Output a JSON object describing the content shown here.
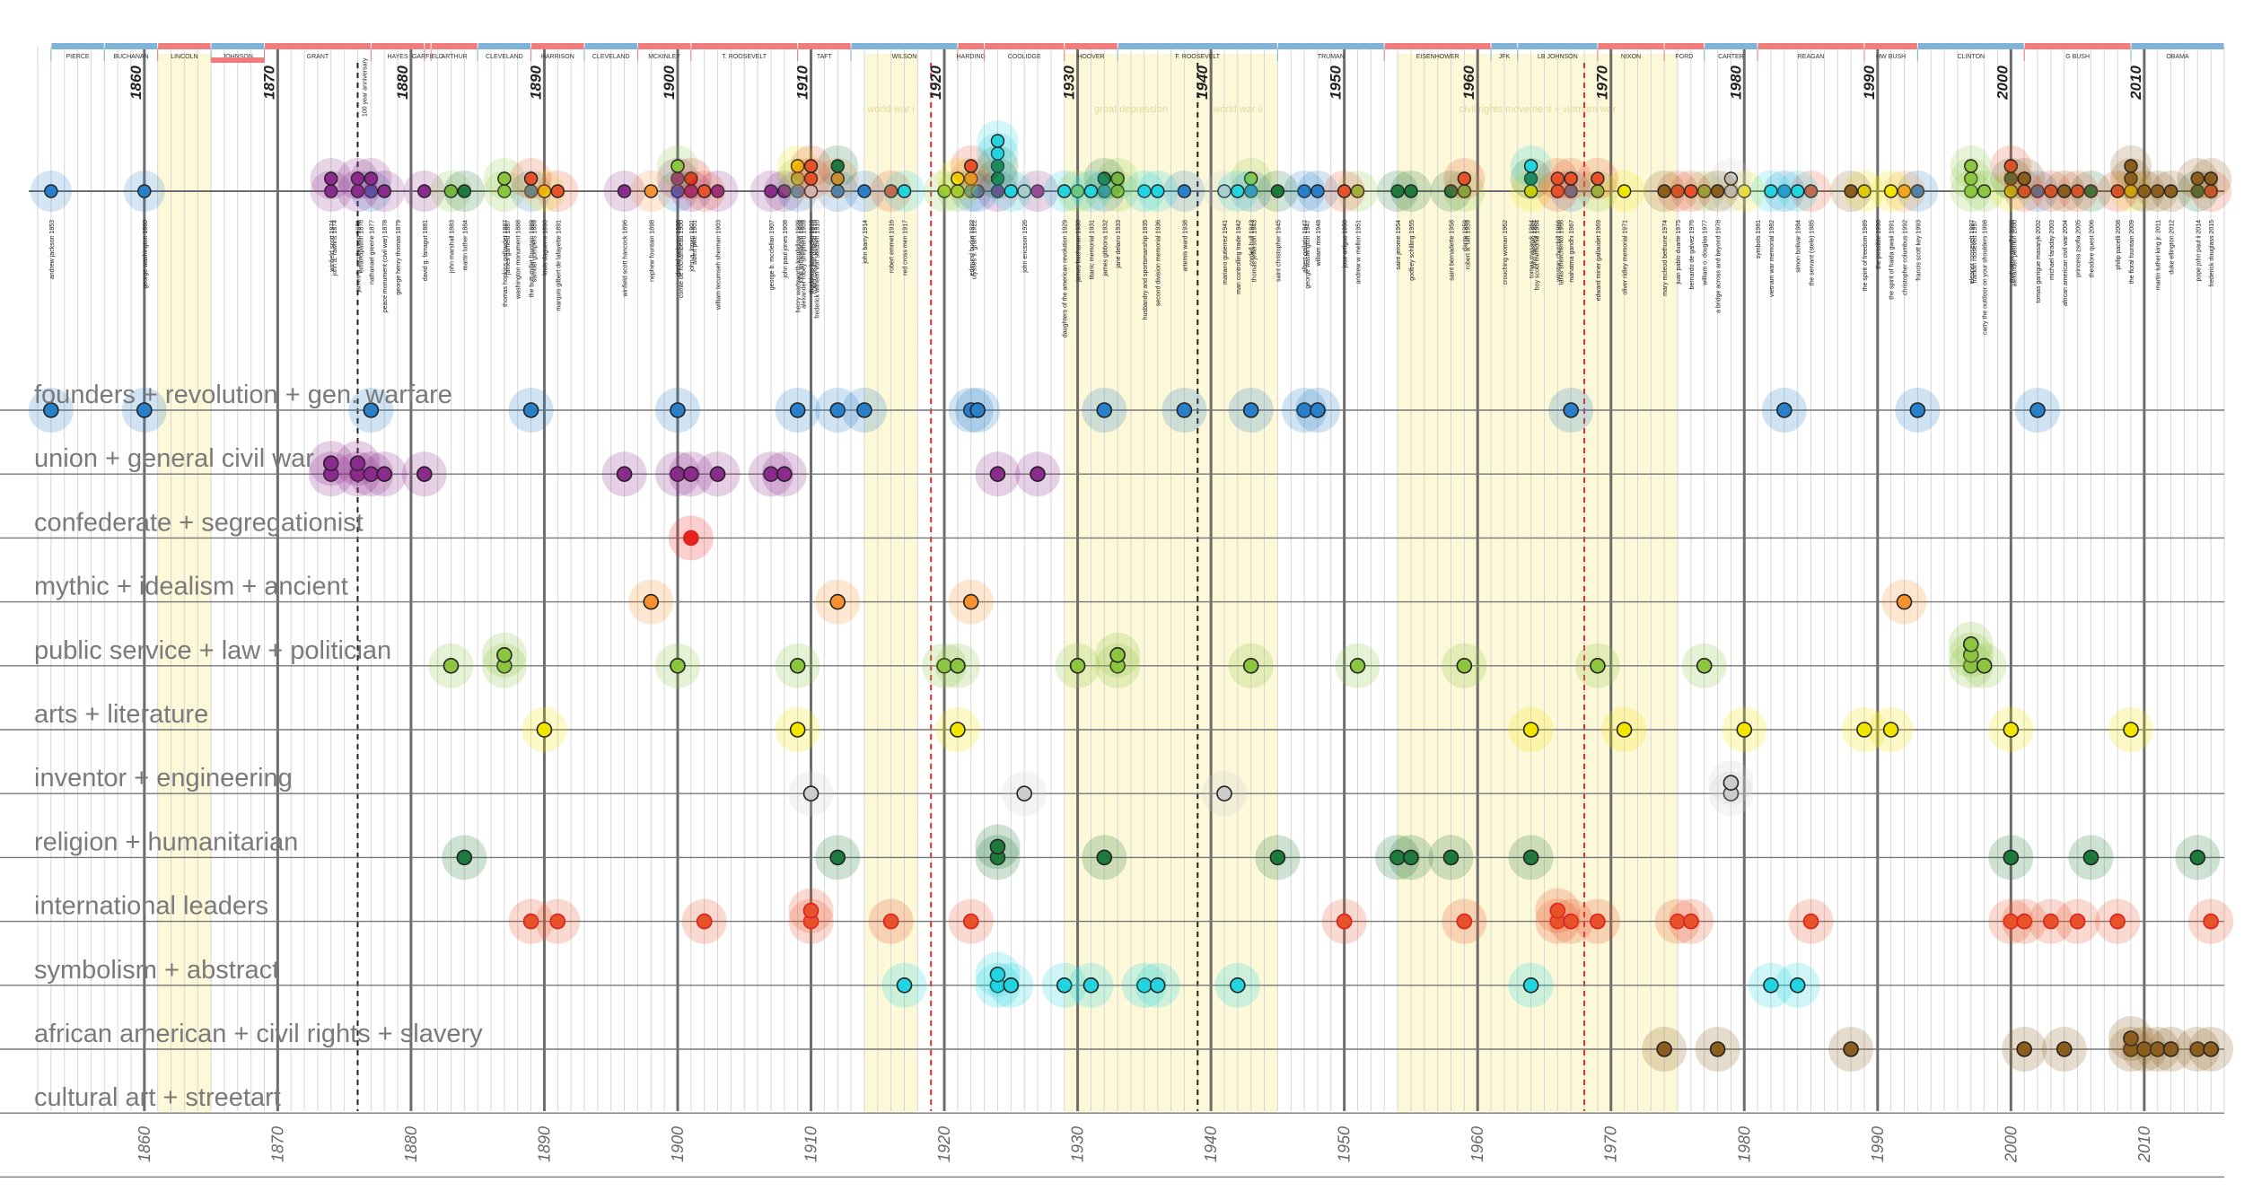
{
  "chart_data": {
    "type": "scatter",
    "x_axis": {
      "min": 1852,
      "max": 2016,
      "ticks": [
        1860,
        1870,
        1880,
        1890,
        1900,
        1910,
        1920,
        1930,
        1940,
        1950,
        1960,
        1970,
        1980,
        1990,
        2000,
        2010
      ]
    },
    "presidents": [
      {
        "name": "PIERCE",
        "start": 1853,
        "end": 1857,
        "party": "D"
      },
      {
        "name": "BUCHANAN",
        "start": 1857,
        "end": 1861,
        "party": "D"
      },
      {
        "name": "LINCOLN",
        "start": 1861,
        "end": 1865,
        "party": "R"
      },
      {
        "name": "JOHNSON",
        "start": 1865,
        "end": 1869,
        "party": "D"
      },
      {
        "name": "GRANT",
        "start": 1869,
        "end": 1877,
        "party": "R"
      },
      {
        "name": "HAYES",
        "start": 1877,
        "end": 1881,
        "party": "R"
      },
      {
        "name": "GARFIELD",
        "start": 1881,
        "end": 1881.5,
        "party": "R"
      },
      {
        "name": "ARTHUR",
        "start": 1881.5,
        "end": 1885,
        "party": "R"
      },
      {
        "name": "CLEVELAND",
        "start": 1885,
        "end": 1889,
        "party": "D"
      },
      {
        "name": "HARRISON",
        "start": 1889,
        "end": 1893,
        "party": "R"
      },
      {
        "name": "CLEVELAND",
        "start": 1893,
        "end": 1897,
        "party": "D"
      },
      {
        "name": "MCKINLEY",
        "start": 1897,
        "end": 1901,
        "party": "R"
      },
      {
        "name": "T. ROOSEVELT",
        "start": 1901,
        "end": 1909,
        "party": "R"
      },
      {
        "name": "TAFT",
        "start": 1909,
        "end": 1913,
        "party": "R"
      },
      {
        "name": "WILSON",
        "start": 1913,
        "end": 1921,
        "party": "D"
      },
      {
        "name": "HARDING",
        "start": 1921,
        "end": 1923,
        "party": "R"
      },
      {
        "name": "COOLIDGE",
        "start": 1923,
        "end": 1929,
        "party": "R"
      },
      {
        "name": "HOOVER",
        "start": 1929,
        "end": 1933,
        "party": "R"
      },
      {
        "name": "F. ROOSEVELT",
        "start": 1933,
        "end": 1945,
        "party": "D"
      },
      {
        "name": "TRUMAN",
        "start": 1945,
        "end": 1953,
        "party": "D"
      },
      {
        "name": "EISENHOWER",
        "start": 1953,
        "end": 1961,
        "party": "R"
      },
      {
        "name": "JFK",
        "start": 1961,
        "end": 1963,
        "party": "D"
      },
      {
        "name": "LB JOHNSON",
        "start": 1963,
        "end": 1969,
        "party": "D"
      },
      {
        "name": "NIXON",
        "start": 1969,
        "end": 1974,
        "party": "R"
      },
      {
        "name": "FORD",
        "start": 1974,
        "end": 1977,
        "party": "R"
      },
      {
        "name": "CARTER",
        "start": 1977,
        "end": 1981,
        "party": "D"
      },
      {
        "name": "REAGAN",
        "start": 1981,
        "end": 1989,
        "party": "R"
      },
      {
        "name": "HW BUSH",
        "start": 1989,
        "end": 1993,
        "party": "R"
      },
      {
        "name": "CLINTON",
        "start": 1993,
        "end": 2001,
        "party": "D"
      },
      {
        "name": "G BUSH",
        "start": 2001,
        "end": 2009,
        "party": "R"
      },
      {
        "name": "OBAMA",
        "start": 2009,
        "end": 2016,
        "party": "D"
      }
    ],
    "eras": [
      {
        "label": "",
        "start": 1861,
        "end": 1865
      },
      {
        "label": "world war i",
        "start": 1914,
        "end": 1918
      },
      {
        "label": "great depression",
        "start": 1929,
        "end": 1939
      },
      {
        "label": "world war ii",
        "start": 1939,
        "end": 1945
      },
      {
        "label": "civil rights movement + vietnam war",
        "start": 1954,
        "end": 1975
      }
    ],
    "marker_lines": [
      {
        "year": 1876,
        "style": "black-dashed",
        "label": "100 year anniversary"
      },
      {
        "year": 1919,
        "style": "red-dashed",
        "label": ""
      },
      {
        "year": 1939,
        "style": "black-dashed",
        "label": ""
      },
      {
        "year": 1968,
        "style": "red-dashed",
        "label": ""
      }
    ],
    "categories": [
      {
        "name": "founders + revolution + gen. warfare",
        "color": "#2a7fc9",
        "years": [
          1853,
          1860,
          1877,
          1889,
          1900,
          1909,
          1912,
          1914,
          1922,
          1922.5,
          1932,
          1938,
          1943,
          1947,
          1948,
          1967,
          1983,
          1993,
          2002
        ]
      },
      {
        "name": "union + general civil war",
        "color": "#8b2b8e",
        "years": [
          1874,
          1874,
          1876,
          1876,
          1877,
          1878,
          1881,
          1896,
          1900,
          1901,
          1903,
          1907,
          1908,
          1924,
          1927
        ]
      },
      {
        "name": "confederate + segregationist",
        "color": "#e8231c",
        "years": [
          1901
        ]
      },
      {
        "name": "mythic + idealism + ancient",
        "color": "#f5912e",
        "years": [
          1898,
          1912,
          1922,
          1992
        ]
      },
      {
        "name": "public service + law + politician",
        "color": "#8cc63f",
        "years": [
          1883,
          1887,
          1887,
          1900,
          1909,
          1920,
          1921,
          1930,
          1933,
          1933,
          1943,
          1951,
          1959,
          1969,
          1977,
          1997,
          1997,
          1997,
          1998
        ]
      },
      {
        "name": "arts + literature",
        "color": "#f2e500",
        "years": [
          1890,
          1909,
          1921,
          1964,
          1971,
          1980,
          1989,
          1991,
          2000,
          2009
        ]
      },
      {
        "name": "inventor + engineering",
        "color": "#cccccc",
        "years": [
          1910,
          1926,
          1941,
          1979,
          1979
        ]
      },
      {
        "name": "religion + humanitarian",
        "color": "#1e7a3c",
        "years": [
          1884,
          1912,
          1924,
          1924,
          1932,
          1945,
          1954,
          1955,
          1958,
          1964,
          2000,
          2006,
          2014
        ]
      },
      {
        "name": "international leaders",
        "color": "#e8522a",
        "years": [
          1889,
          1891,
          1902,
          1910,
          1910,
          1916,
          1922,
          1950,
          1959,
          1966,
          1966,
          1967,
          1969,
          1975,
          1976,
          1985,
          2000,
          2001,
          2003,
          2005,
          2008,
          2015
        ]
      },
      {
        "name": "symbolism + abstract",
        "color": "#21d4e0",
        "years": [
          1917,
          1924,
          1924,
          1925,
          1929,
          1931,
          1935,
          1936,
          1942,
          1964,
          1982,
          1984
        ]
      },
      {
        "name": "african american + civil rights + slavery",
        "color": "#8b5e1e",
        "years": [
          1974,
          1978,
          1988,
          2001,
          2004,
          2009,
          2009,
          2010,
          2011,
          2012,
          2014,
          2015
        ]
      },
      {
        "name": "cultural art + streetart",
        "color": "#999999",
        "years": []
      }
    ],
    "monuments": [
      {
        "name": "andrew jackson 1853",
        "year": 1853
      },
      {
        "name": "george washington 1860",
        "year": 1860
      },
      {
        "name": "winfield scott 1874",
        "year": 1874
      },
      {
        "name": "john a. rawlins 1874",
        "year": 1874.2
      },
      {
        "name": "james b. mcpherson 1876",
        "year": 1876
      },
      {
        "name": "emancipation 1876",
        "year": 1876.2
      },
      {
        "name": "nathanael greene 1877",
        "year": 1877
      },
      {
        "name": "peace monument (civil war) 1878",
        "year": 1878
      },
      {
        "name": "george henry thomas 1879",
        "year": 1879
      },
      {
        "name": "david g. farragut 1881",
        "year": 1881
      },
      {
        "name": "john marshall 1883",
        "year": 1883
      },
      {
        "name": "martin luther 1884",
        "year": 1884
      },
      {
        "name": "thomas hopkins gallaudet 1887",
        "year": 1887
      },
      {
        "name": "james garfield 1887",
        "year": 1887.2
      },
      {
        "name": "washington monument 1888",
        "year": 1888
      },
      {
        "name": "the butt-millet fountain 1889",
        "year": 1889
      },
      {
        "name": "samuel gompers 1889",
        "year": 1889.2
      },
      {
        "name": "louis daguerre 1890",
        "year": 1890
      },
      {
        "name": "marquis gilbert de lafayette 1891",
        "year": 1891
      },
      {
        "name": "winfield scott hancock 1896",
        "year": 1896
      },
      {
        "name": "nephew fountain 1898",
        "year": 1898
      },
      {
        "name": "daniel webster 1900",
        "year": 1900
      },
      {
        "name": "comte de rochambeau 1900",
        "year": 1900.2
      },
      {
        "name": "john a. logan 1901",
        "year": 1901
      },
      {
        "name": "albert pike 1901",
        "year": 1901.2
      },
      {
        "name": "william tecumseh sherman 1903",
        "year": 1903
      },
      {
        "name": "george b. mcclellan 1907",
        "year": 1907
      },
      {
        "name": "john paul jones 1908",
        "year": 1908
      },
      {
        "name": "henry wadsworth longfellow 1909",
        "year": 1909
      },
      {
        "name": "john witherspoon 1909",
        "year": 1909.2
      },
      {
        "name": "alexander robey shepherd 1909",
        "year": 1909.4
      },
      {
        "name": "thaddeus kosciuszko 1910",
        "year": 1910
      },
      {
        "name": "count casimir pulaski 1910",
        "year": 1910.2
      },
      {
        "name": "frederick wilhelm von steuben 1910",
        "year": 1910.4
      },
      {
        "name": "john barry 1914",
        "year": 1914
      },
      {
        "name": "robert emmet 1916",
        "year": 1916
      },
      {
        "name": "red cross men 1917",
        "year": 1917
      },
      {
        "name": "edmund burke 1922",
        "year": 1922
      },
      {
        "name": "ulysses s. grant 1922",
        "year": 1922.2
      },
      {
        "name": "john ericsson 1926",
        "year": 1926
      },
      {
        "name": "daughters of the american revolution 1929",
        "year": 1929
      },
      {
        "name": "james buchanan 1930",
        "year": 1930
      },
      {
        "name": "titanic memorial 1931",
        "year": 1931
      },
      {
        "name": "james gibbons 1932",
        "year": 1932
      },
      {
        "name": "jane delano 1933",
        "year": 1933
      },
      {
        "name": "husbandry and sportsmanship 1935",
        "year": 1935
      },
      {
        "name": "second division memorial 1936",
        "year": 1936
      },
      {
        "name": "artemis ward 1938",
        "year": 1938
      },
      {
        "name": "mariano gutierrez 1941",
        "year": 1941
      },
      {
        "name": "man controlling trade 1942",
        "year": 1942
      },
      {
        "name": "cordell hull 1943",
        "year": 1943
      },
      {
        "name": "thomas jefferson 1943",
        "year": 1943.2
      },
      {
        "name": "saint christopher 1945",
        "year": 1945
      },
      {
        "name": "albert gallatin 1947",
        "year": 1947
      },
      {
        "name": "george washington 1947",
        "year": 1947.2
      },
      {
        "name": "william mix 1948",
        "year": 1948
      },
      {
        "name": "jose artigas 1950",
        "year": 1950
      },
      {
        "name": "andrew w. mellon 1951",
        "year": 1951
      },
      {
        "name": "saint jerome 1954",
        "year": 1954
      },
      {
        "name": "godfrey schilling 1955",
        "year": 1955
      },
      {
        "name": "saint bernadette 1958",
        "year": 1958
      },
      {
        "name": "dante 1959",
        "year": 1959
      },
      {
        "name": "robert a. taft 1959",
        "year": 1959.2
      },
      {
        "name": "crouching woman 1962",
        "year": 1962
      },
      {
        "name": "tomas masaryk 1964",
        "year": 1964
      },
      {
        "name": "john wesley 1964",
        "year": 1964.2
      },
      {
        "name": "boy scout memorial 1964",
        "year": 1964.4
      },
      {
        "name": "winston churchill 1966",
        "year": 1966
      },
      {
        "name": "taras shevchenko 1966",
        "year": 1966.2
      },
      {
        "name": "mahatma gandhi 1967",
        "year": 1967
      },
      {
        "name": "edward miner gallaudet 1969",
        "year": 1969
      },
      {
        "name": "oliver ridley memorial 1971",
        "year": 1971
      },
      {
        "name": "mary mcleod bethune 1974",
        "year": 1974
      },
      {
        "name": "juan pablo duarte 1975",
        "year": 1975
      },
      {
        "name": "bernardo de galvez 1976",
        "year": 1976
      },
      {
        "name": "william o. douglas 1977",
        "year": 1977
      },
      {
        "name": "a bridge across and beyond 1978",
        "year": 1978
      },
      {
        "name": "symbols 1981",
        "year": 1981
      },
      {
        "name": "vietnam war memorial 1982",
        "year": 1982
      },
      {
        "name": "simon bolivar 1984",
        "year": 1984
      },
      {
        "name": "the servant (stele) 1985",
        "year": 1985
      },
      {
        "name": "the spirit of freedom 1989",
        "year": 1989
      },
      {
        "name": "the possible 1990",
        "year": 1990
      },
      {
        "name": "the spirit of haida gwaii 1991",
        "year": 1991
      },
      {
        "name": "christopher columbus 1992",
        "year": 1992
      },
      {
        "name": "francis scott key 1993",
        "year": 1993
      },
      {
        "name": "eleanor roosevelt 1997",
        "year": 1997
      },
      {
        "name": "franklin roosevelt 1997",
        "year": 1997.2
      },
      {
        "name": "carry the outdoor on your shoulders 1998",
        "year": 1998
      },
      {
        "name": "mahatma gandhi 2000",
        "year": 2000
      },
      {
        "name": "alexander pushkin 2000",
        "year": 2000.2
      },
      {
        "name": "tomas garrigue masaryk 2002",
        "year": 2002
      },
      {
        "name": "michael faraday 2003",
        "year": 2003
      },
      {
        "name": "african american civil war 2004",
        "year": 2004
      },
      {
        "name": "princess zsofia 2005",
        "year": 2005
      },
      {
        "name": "theodore quest 2006",
        "year": 2006
      },
      {
        "name": "philip pacelli 2008",
        "year": 2008
      },
      {
        "name": "the floral fountain 2009",
        "year": 2009
      },
      {
        "name": "martin luther king jr. 2011",
        "year": 2011
      },
      {
        "name": "duke ellington 2012",
        "year": 2012
      },
      {
        "name": "pope john paul ii 2014",
        "year": 2014
      },
      {
        "name": "frederick douglass 2015",
        "year": 2015
      }
    ],
    "bottom_axis_labels": [
      "1860",
      "1870",
      "1880",
      "1890",
      "1900",
      "1910",
      "1920",
      "1930",
      "1940",
      "1950",
      "1960",
      "1970",
      "1980",
      "1990",
      "2000",
      "2010"
    ],
    "era_text_labels": [
      "world war i",
      "great depression",
      "world war ii",
      "civil rights movement + vietnam war"
    ],
    "grid": true
  }
}
